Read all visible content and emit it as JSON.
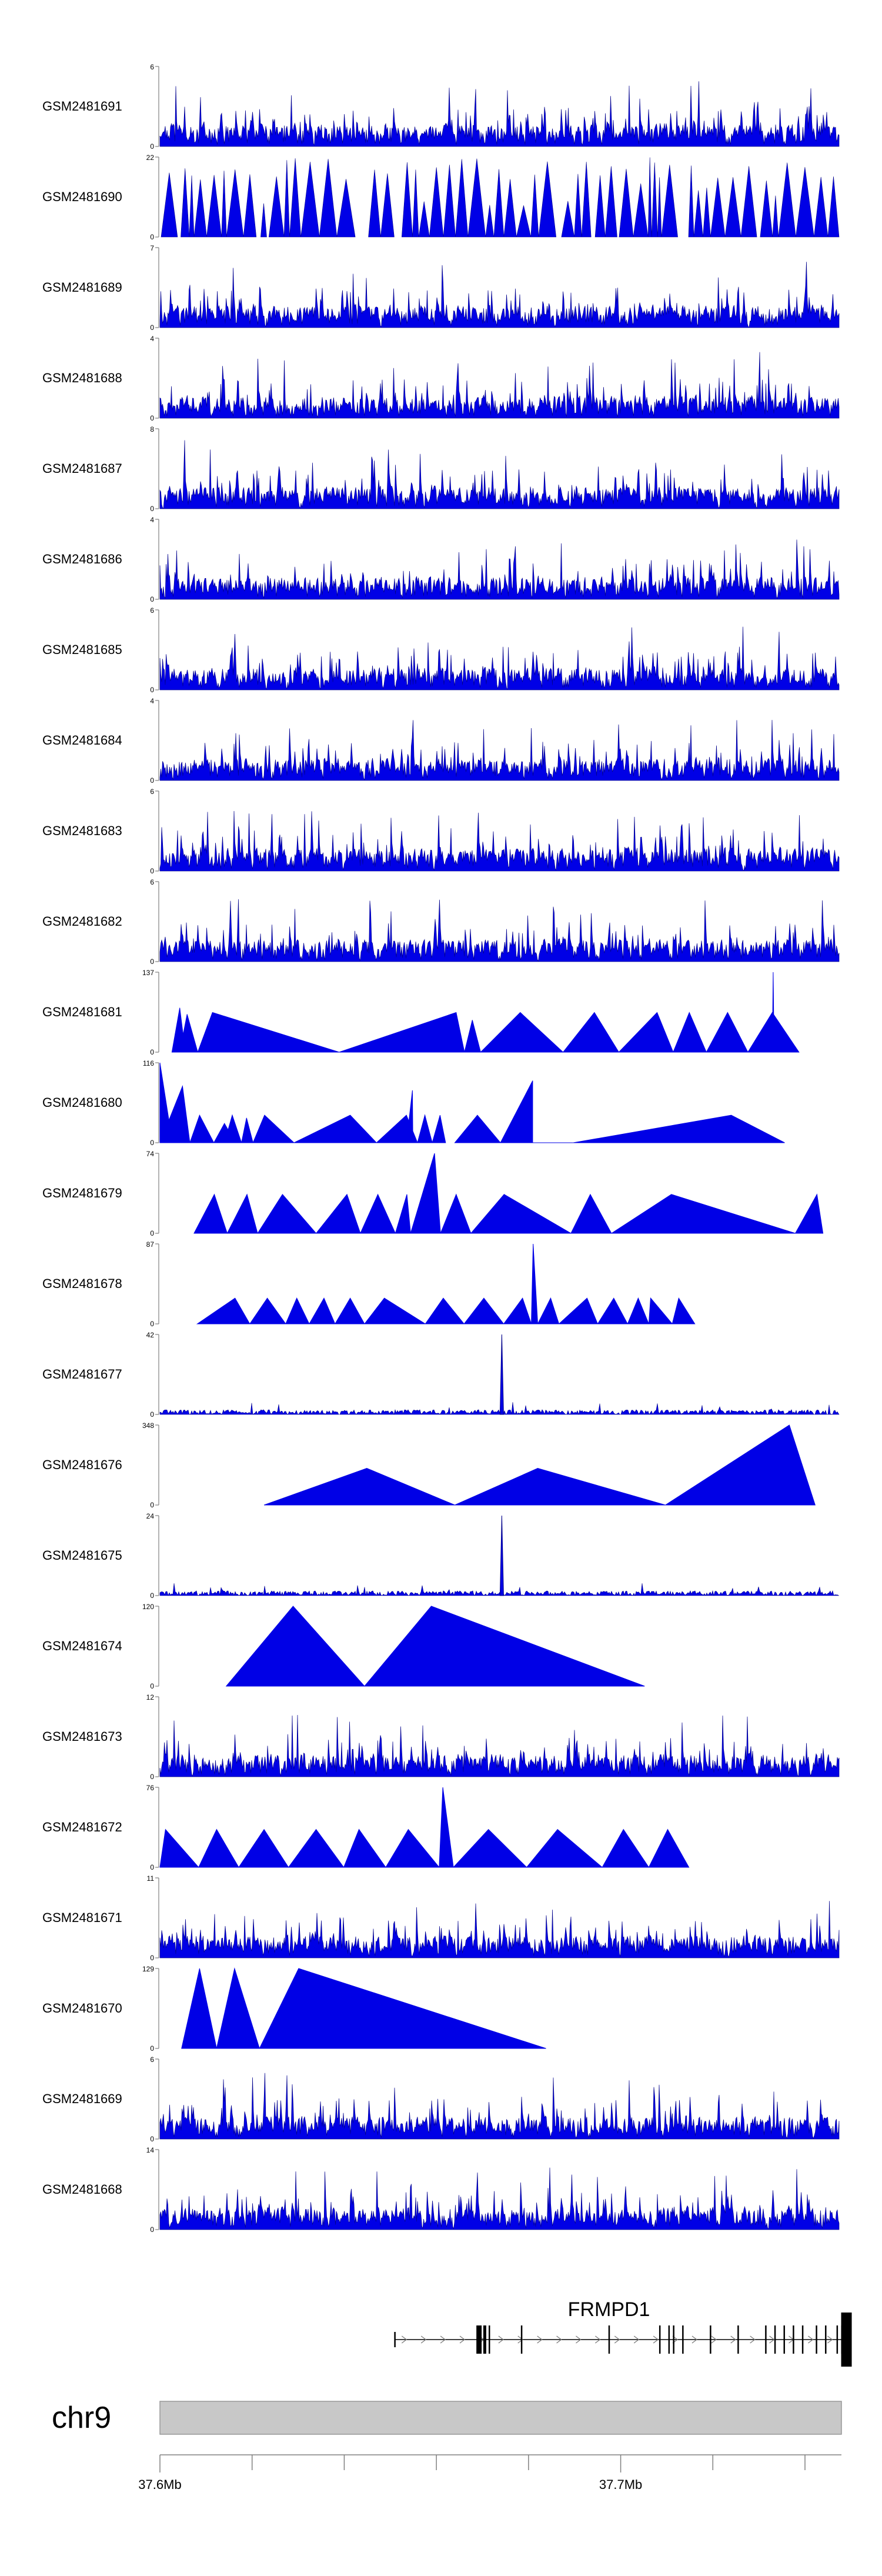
{
  "chart_data": {
    "type": "area",
    "title": "",
    "chromosome": "chr9",
    "gene": {
      "name": "FRMPD1",
      "strand": "+",
      "start_mb": 37.651,
      "end_mb": 37.749,
      "exons_mb": [
        37.651,
        37.669,
        37.6695,
        37.6705,
        37.6715,
        37.6785,
        37.6975,
        37.7085,
        37.7105,
        37.7115,
        37.7135,
        37.7195,
        37.7255,
        37.7315,
        37.7335,
        37.7355,
        37.7375,
        37.7395,
        37.7425,
        37.7445,
        37.747,
        37.748,
        37.749
      ]
    },
    "x_axis": {
      "range_mb": [
        37.6,
        37.7474
      ],
      "tick_labels": [
        "37.6Mb",
        "37.7Mb"
      ],
      "tick_values_mb": [
        37.6,
        37.7
      ],
      "minor_ticks_mb": [
        37.62,
        37.64,
        37.66,
        37.68,
        37.72,
        37.74
      ]
    },
    "series": [
      {
        "name": "GSM2481691",
        "ymin": 0,
        "ymax": 6,
        "kind": "dense"
      },
      {
        "name": "GSM2481690",
        "ymin": 0,
        "ymax": 22,
        "kind": "dense_peaks"
      },
      {
        "name": "GSM2481689",
        "ymin": 0,
        "ymax": 7,
        "kind": "dense"
      },
      {
        "name": "GSM2481688",
        "ymin": 0,
        "ymax": 4,
        "kind": "dense"
      },
      {
        "name": "GSM2481687",
        "ymin": 0,
        "ymax": 8,
        "kind": "dense"
      },
      {
        "name": "GSM2481686",
        "ymin": 0,
        "ymax": 4,
        "kind": "dense"
      },
      {
        "name": "GSM2481685",
        "ymin": 0,
        "ymax": 6,
        "kind": "dense"
      },
      {
        "name": "GSM2481684",
        "ymin": 0,
        "ymax": 4,
        "kind": "dense"
      },
      {
        "name": "GSM2481683",
        "ymin": 0,
        "ymax": 6,
        "kind": "dense"
      },
      {
        "name": "GSM2481682",
        "ymin": 0,
        "ymax": 6,
        "kind": "dense"
      },
      {
        "name": "GSM2481681",
        "ymin": 0,
        "ymax": 137,
        "kind": "peaks",
        "peaks": [
          [
            37.6026,
            37.6043,
            37.6055,
            76
          ],
          [
            37.6043,
            37.6059,
            37.6082,
            65
          ],
          [
            37.6082,
            37.6114,
            37.6389,
            68
          ],
          [
            37.6389,
            37.6643,
            37.6661,
            68
          ],
          [
            37.6661,
            37.6678,
            37.6696,
            55
          ],
          [
            37.6696,
            37.6782,
            37.6875,
            68
          ],
          [
            37.6875,
            37.6943,
            37.6996,
            68
          ],
          [
            37.6996,
            37.7079,
            37.7114,
            68
          ],
          [
            37.7114,
            37.7149,
            37.7186,
            68
          ],
          [
            37.7186,
            37.7232,
            37.7276,
            68
          ],
          [
            37.7276,
            37.7329,
            37.7387,
            68
          ],
          [
            37.7329,
            37.7331,
            37.7333,
            137
          ]
        ]
      },
      {
        "name": "GSM2481680",
        "ymin": 0,
        "ymax": 116,
        "kind": "peaks",
        "peaks": [
          [
            37.6,
            37.6,
            37.6027,
            116
          ],
          [
            37.6,
            37.6049,
            37.6065,
            82
          ],
          [
            37.6065,
            37.6086,
            37.6117,
            40
          ],
          [
            37.6117,
            37.614,
            37.6164,
            28
          ],
          [
            37.614,
            37.6157,
            37.6177,
            40
          ],
          [
            37.6177,
            37.6188,
            37.6202,
            36
          ],
          [
            37.6202,
            37.6227,
            37.6291,
            40
          ],
          [
            37.6291,
            37.6413,
            37.647,
            40
          ],
          [
            37.647,
            37.6535,
            37.6559,
            40
          ],
          [
            37.6535,
            37.6548,
            37.6549,
            76
          ],
          [
            37.6559,
            37.6575,
            37.6591,
            40
          ],
          [
            37.6591,
            37.6608,
            37.662,
            40
          ],
          [
            37.664,
            37.6689,
            37.6739,
            40
          ],
          [
            37.6739,
            37.6809,
            37.6809,
            90
          ],
          [
            37.6809,
            37.6897,
            37.6897,
            0
          ],
          [
            37.6897,
            37.724,
            37.7356,
            40
          ]
        ]
      },
      {
        "name": "GSM2481679",
        "ymin": 0,
        "ymax": 74,
        "kind": "peaks",
        "peaks": [
          [
            37.6074,
            37.6118,
            37.6146,
            36
          ],
          [
            37.6146,
            37.6189,
            37.6212,
            36
          ],
          [
            37.6212,
            37.6266,
            37.6339,
            36
          ],
          [
            37.6339,
            37.6406,
            37.6435,
            36
          ],
          [
            37.6435,
            37.6473,
            37.6511,
            36
          ],
          [
            37.6511,
            37.6536,
            37.6544,
            36
          ],
          [
            37.6544,
            37.6596,
            37.6609,
            74
          ],
          [
            37.6609,
            37.6643,
            37.6675,
            36
          ],
          [
            37.6675,
            37.6747,
            37.6892,
            36
          ],
          [
            37.6892,
            37.6934,
            37.698,
            36
          ],
          [
            37.698,
            37.711,
            37.7379,
            36
          ],
          [
            37.7379,
            37.7426,
            37.7439,
            36
          ]
        ]
      },
      {
        "name": "GSM2481678",
        "ymin": 0,
        "ymax": 87,
        "kind": "peaks",
        "peaks": [
          [
            37.6081,
            37.6163,
            37.6195,
            28
          ],
          [
            37.6195,
            37.6233,
            37.6273,
            28
          ],
          [
            37.6273,
            37.6297,
            37.6324,
            28
          ],
          [
            37.6324,
            37.6356,
            37.638,
            28
          ],
          [
            37.638,
            37.6413,
            37.6444,
            28
          ],
          [
            37.6444,
            37.6487,
            37.6576,
            28
          ],
          [
            37.6576,
            37.6615,
            37.666,
            28
          ],
          [
            37.666,
            37.6703,
            37.6746,
            28
          ],
          [
            37.6746,
            37.6787,
            37.6806,
            28
          ],
          [
            37.6806,
            37.681,
            37.682,
            87
          ],
          [
            37.682,
            37.6848,
            37.6866,
            28
          ],
          [
            37.6866,
            37.6927,
            37.695,
            28
          ],
          [
            37.695,
            37.6985,
            37.7015,
            28
          ],
          [
            37.7015,
            37.7038,
            37.7061,
            28
          ],
          [
            37.7061,
            37.7065,
            37.7112,
            28
          ],
          [
            37.7112,
            37.7126,
            37.7161,
            28
          ]
        ]
      },
      {
        "name": "GSM2481677",
        "ymin": 0,
        "ymax": 42,
        "kind": "sparse",
        "spike_mb": 37.6742,
        "spike_value": 42
      },
      {
        "name": "GSM2481676",
        "ymin": 0,
        "ymax": 348,
        "kind": "peaks",
        "peaks": [
          [
            37.6226,
            37.6449,
            37.664,
            160
          ],
          [
            37.664,
            37.682,
            37.7097,
            160
          ],
          [
            37.7097,
            37.7366,
            37.7422,
            348
          ]
        ]
      },
      {
        "name": "GSM2481675",
        "ymin": 0,
        "ymax": 24,
        "kind": "sparse",
        "spike_mb": 37.6742,
        "spike_value": 24
      },
      {
        "name": "GSM2481674",
        "ymin": 0,
        "ymax": 120,
        "kind": "peaks",
        "peaks": [
          [
            37.6144,
            37.6289,
            37.6444,
            120
          ],
          [
            37.6444,
            37.6589,
            37.7052,
            120
          ]
        ]
      },
      {
        "name": "GSM2481673",
        "ymin": 0,
        "ymax": 12,
        "kind": "dense"
      },
      {
        "name": "GSM2481672",
        "ymin": 0,
        "ymax": 76,
        "kind": "peaks",
        "peaks": [
          [
            37.6,
            37.6012,
            37.6084,
            36
          ],
          [
            37.6084,
            37.6123,
            37.6171,
            36
          ],
          [
            37.6171,
            37.6226,
            37.6279,
            36
          ],
          [
            37.6279,
            37.6339,
            37.6399,
            36
          ],
          [
            37.6399,
            37.6432,
            37.649,
            36
          ],
          [
            37.649,
            37.6539,
            37.6606,
            36
          ],
          [
            37.6606,
            37.6614,
            37.6637,
            76
          ],
          [
            37.6637,
            37.6713,
            37.6796,
            36
          ],
          [
            37.6796,
            37.6863,
            37.696,
            36
          ],
          [
            37.696,
            37.7006,
            37.7061,
            36
          ],
          [
            37.7061,
            37.7102,
            37.7148,
            36
          ]
        ]
      },
      {
        "name": "GSM2481671",
        "ymin": 0,
        "ymax": 11,
        "kind": "dense"
      },
      {
        "name": "GSM2481670",
        "ymin": 0,
        "ymax": 129,
        "kind": "peaks",
        "peaks": [
          [
            37.6047,
            37.6086,
            37.6123,
            129
          ],
          [
            37.6123,
            37.6162,
            37.6216,
            129
          ],
          [
            37.6216,
            37.6301,
            37.6838,
            129
          ]
        ]
      },
      {
        "name": "GSM2481669",
        "ymin": 0,
        "ymax": 6,
        "kind": "dense"
      },
      {
        "name": "GSM2481668",
        "ymin": 0,
        "ymax": 14,
        "kind": "dense"
      }
    ],
    "colors": {
      "signal": "#0000e6",
      "signal_dark": "#00008b",
      "axis": "#808080",
      "ideogram": "#c8c8c8",
      "gene": "#000000"
    }
  }
}
